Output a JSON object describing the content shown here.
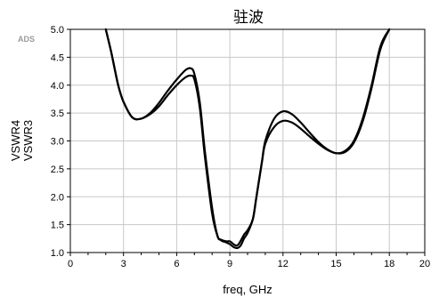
{
  "chart_data": {
    "type": "line",
    "title": "驻波",
    "xlabel": "freq, GHz",
    "ylabels": [
      "VSWR4",
      "VSWR3"
    ],
    "xlim": [
      0,
      20
    ],
    "ylim": [
      1.0,
      5.0
    ],
    "xticks": [
      0,
      3,
      6,
      9,
      12,
      15,
      18,
      20
    ],
    "yticks": [
      1.0,
      1.5,
      2.0,
      2.5,
      3.0,
      3.5,
      4.0,
      4.5,
      5.0
    ],
    "grid": true,
    "series": [
      {
        "name": "VSWR4",
        "x": [
          2.0,
          2.3,
          2.7,
          3.0,
          3.5,
          4.0,
          4.5,
          5.0,
          5.5,
          6.0,
          6.5,
          6.8,
          7.0,
          7.3,
          7.6,
          8.0,
          8.3,
          8.5,
          8.8,
          9.0,
          9.3,
          9.5,
          9.8,
          10.0,
          10.3,
          10.5,
          10.8,
          11.0,
          11.5,
          12.0,
          12.5,
          13.0,
          13.5,
          14.0,
          14.5,
          15.0,
          15.5,
          16.0,
          16.5,
          17.0,
          17.5,
          18.0
        ],
        "y": [
          5.0,
          4.6,
          4.0,
          3.7,
          3.42,
          3.4,
          3.5,
          3.68,
          3.9,
          4.1,
          4.27,
          4.3,
          4.2,
          3.7,
          2.8,
          1.8,
          1.3,
          1.23,
          1.2,
          1.2,
          1.13,
          1.15,
          1.32,
          1.4,
          1.6,
          2.0,
          2.6,
          3.0,
          3.4,
          3.53,
          3.48,
          3.33,
          3.15,
          2.98,
          2.85,
          2.78,
          2.82,
          3.0,
          3.4,
          4.0,
          4.7,
          5.0
        ]
      },
      {
        "name": "VSWR3",
        "x": [
          2.0,
          2.3,
          2.7,
          3.0,
          3.5,
          4.0,
          4.5,
          5.0,
          5.5,
          6.0,
          6.5,
          6.8,
          7.0,
          7.3,
          7.6,
          8.0,
          8.3,
          8.5,
          8.8,
          9.0,
          9.2,
          9.4,
          9.6,
          9.8,
          10.0,
          10.3,
          10.5,
          10.8,
          11.0,
          11.5,
          12.0,
          12.5,
          13.0,
          13.5,
          14.0,
          14.5,
          15.0,
          15.5,
          16.0,
          16.5,
          17.0,
          17.5,
          18.0
        ],
        "y": [
          5.0,
          4.6,
          4.0,
          3.7,
          3.42,
          3.4,
          3.48,
          3.62,
          3.82,
          4.0,
          4.14,
          4.17,
          4.1,
          3.6,
          2.7,
          1.7,
          1.3,
          1.22,
          1.18,
          1.15,
          1.1,
          1.08,
          1.12,
          1.25,
          1.35,
          1.6,
          2.0,
          2.6,
          2.95,
          3.25,
          3.36,
          3.33,
          3.22,
          3.08,
          2.95,
          2.84,
          2.78,
          2.8,
          2.97,
          3.35,
          3.95,
          4.65,
          5.0
        ]
      }
    ]
  },
  "watermark": "ADS"
}
